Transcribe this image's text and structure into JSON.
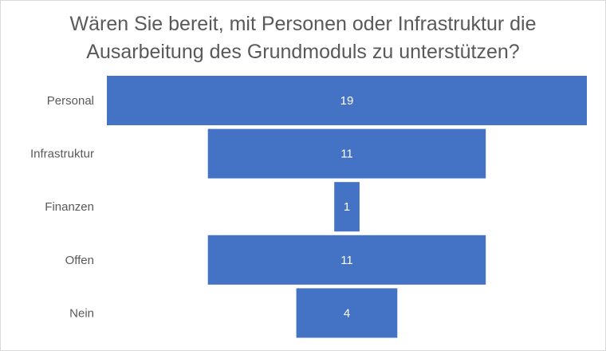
{
  "chart_data": {
    "type": "bar",
    "subtype": "funnel",
    "title_lines": [
      "Wären Sie bereit, mit Personen oder Infrastruktur die",
      "Ausarbeitung des Grundmoduls zu unterstützen?"
    ],
    "categories": [
      "Personal",
      "Infrastruktur",
      "Finanzen",
      "Offen",
      "Nein"
    ],
    "values": [
      19,
      11,
      1,
      11,
      4
    ],
    "bar_color": "#4472C4",
    "label_color": "#595959",
    "value_label_color": "#FFFFFF",
    "grid": false,
    "legend": "none"
  }
}
